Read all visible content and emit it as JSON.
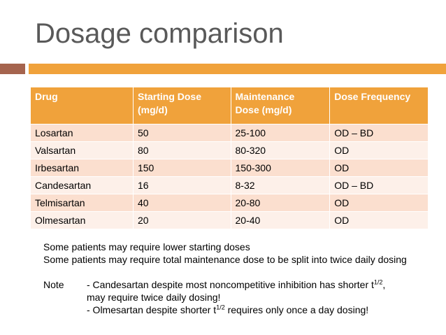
{
  "title": "Dosage comparison",
  "table": {
    "headers": [
      {
        "line1": "Drug",
        "line2": ""
      },
      {
        "line1": "Starting Dose",
        "line2": "(mg/d)"
      },
      {
        "line1": "Maintenance",
        "line2": "Dose (mg/d)"
      },
      {
        "line1": "Dose Frequency",
        "line2": ""
      }
    ],
    "rows": [
      [
        "Losartan",
        "50",
        "25-100",
        "OD – BD"
      ],
      [
        "Valsartan",
        "80",
        "80-320",
        "OD"
      ],
      [
        "Irbesartan",
        "150",
        "150-300",
        "OD"
      ],
      [
        "Candesartan",
        "16",
        "8-32",
        "OD – BD"
      ],
      [
        "Telmisartan",
        "40",
        "20-80",
        "OD"
      ],
      [
        "Olmesartan",
        "20",
        "20-40",
        "OD"
      ]
    ]
  },
  "notes": {
    "line1": "Some patients may require lower starting doses",
    "line2": "Some patients may require total maintenance dose to be split into twice daily dosing",
    "note_label": "Note",
    "note1_pre": "- Candesartan despite most noncompetitive inhibition has shorter t",
    "note1_sup": "1/2",
    "note1_post": ",",
    "note2": "may require twice daily dosing!",
    "note3_pre": "- Olmesartan despite shorter t",
    "note3_sup": "1/2",
    "note3_post": " requires only once a day dosing!"
  },
  "colors": {
    "accent": "#f0a23b",
    "accent_dark": "#a5644e",
    "row_odd": "#fbdfcf",
    "row_even": "#fdf0e9",
    "title": "#595959"
  }
}
